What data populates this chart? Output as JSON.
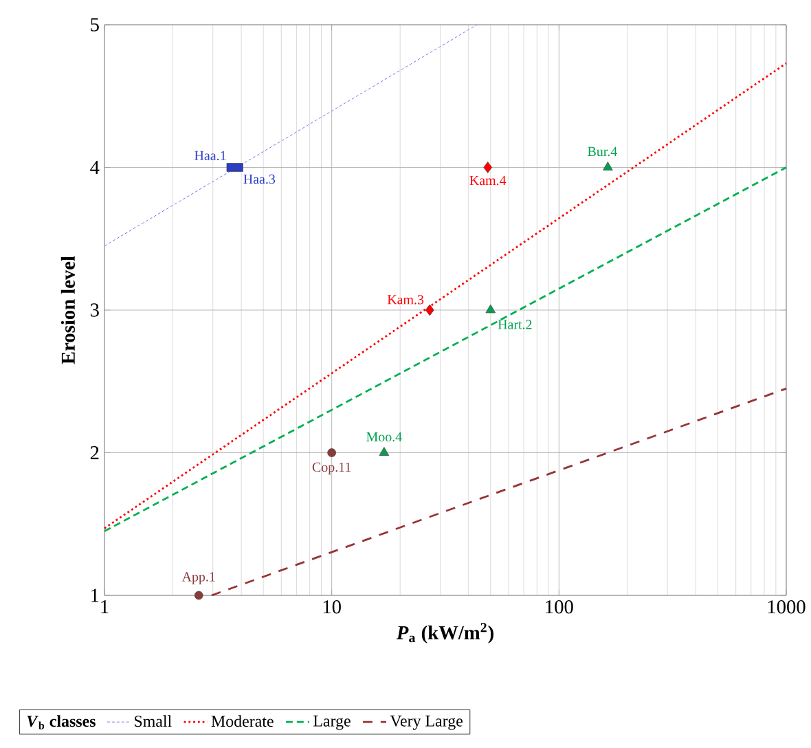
{
  "chart_data": {
    "type": "line",
    "xlabel": "*P*$_{a}$ (kW/m$^{2}$)",
    "ylabel": "Erosion level",
    "legend_title": "*V*$_{b}$ classes",
    "log": "x",
    "grid": true,
    "legend": "bottom",
    "xlim": [
      1,
      1000
    ],
    "ylim": [
      1,
      5
    ],
    "xticks": [
      1,
      10,
      100,
      1000
    ],
    "yticks": [
      1,
      2,
      3,
      4,
      5
    ],
    "series": [
      {
        "name": "Small",
        "line_style": "dashed",
        "marker": "none",
        "color": "#7777ee",
        "x": [
          1,
          43.6
        ],
        "values": [
          3.45,
          5
        ]
      },
      {
        "name": "Moderate",
        "line_style": "dotted",
        "marker": "none",
        "color": "#ff0000",
        "x": [
          1,
          1000
        ],
        "values": [
          1.47,
          4.73
        ]
      },
      {
        "name": "Large",
        "line_style": "dashed",
        "marker": "none",
        "color": "#00b050",
        "x": [
          1,
          1000
        ],
        "values": [
          1.45,
          4.0
        ]
      },
      {
        "name": "Very Large",
        "line_style": "dashed",
        "marker": "none",
        "color": "#993333",
        "x": [
          2.96,
          1000
        ],
        "values": [
          1,
          2.45
        ]
      },
      {
        "type": "scatter",
        "marker": "square",
        "color": "#2a3ccc",
        "x": [
          3.6,
          3.9
        ],
        "values": [
          4,
          4
        ]
      },
      {
        "type": "scatter",
        "marker": "diamond",
        "color": "#ff0000",
        "x": [
          48.6,
          27
        ],
        "values": [
          4,
          3
        ]
      },
      {
        "type": "scatter",
        "marker": "triangle",
        "color": "#00a050",
        "x": [
          164,
          50,
          17
        ],
        "values": [
          4,
          3,
          2
        ]
      },
      {
        "type": "scatter",
        "marker": "circle",
        "color": "#8b3a3a",
        "x": [
          10,
          2.6
        ],
        "values": [
          2,
          1
        ]
      }
    ],
    "annotations": [
      {
        "text": "Haa.1",
        "x": 3.6,
        "y": 4
      },
      {
        "text": "Haa.3",
        "x": 3.9,
        "y": 4
      },
      {
        "text": "Kam.4",
        "x": 48.6,
        "y": 4
      },
      {
        "text": "Kam.3",
        "x": 27,
        "y": 3
      },
      {
        "text": "Bur.4",
        "x": 164,
        "y": 4
      },
      {
        "text": "Hart.2",
        "x": 50,
        "y": 3
      },
      {
        "text": "Moo.4",
        "x": 17,
        "y": 2
      },
      {
        "text": "Cop.11",
        "x": 10,
        "y": 2
      },
      {
        "text": "App.1",
        "x": 2.6,
        "y": 1
      }
    ]
  }
}
